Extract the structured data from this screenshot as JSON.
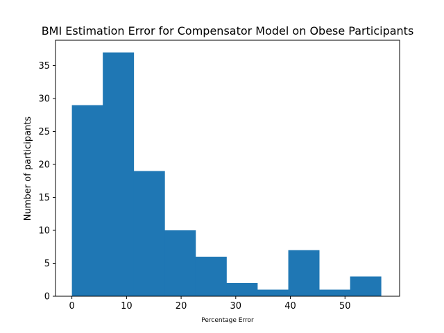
{
  "chart_data": {
    "type": "bar",
    "title": "BMI Estimation Error for Compensator Model on Obese Participants",
    "xlabel": "Percentage Error",
    "ylabel": "Number of participants",
    "bin_edges": [
      0,
      5.66,
      11.32,
      16.98,
      22.64,
      28.3,
      33.96,
      39.62,
      45.28,
      50.94,
      56.6
    ],
    "values": [
      29,
      37,
      19,
      10,
      6,
      2,
      1,
      7,
      1,
      3
    ],
    "xlim": [
      -3,
      60
    ],
    "ylim": [
      0,
      38.85
    ],
    "xticks": [
      0,
      10,
      20,
      30,
      40,
      50
    ],
    "yticks": [
      0,
      5,
      10,
      15,
      20,
      25,
      30,
      35
    ],
    "grid": false,
    "bar_color": "#1f77b4"
  }
}
